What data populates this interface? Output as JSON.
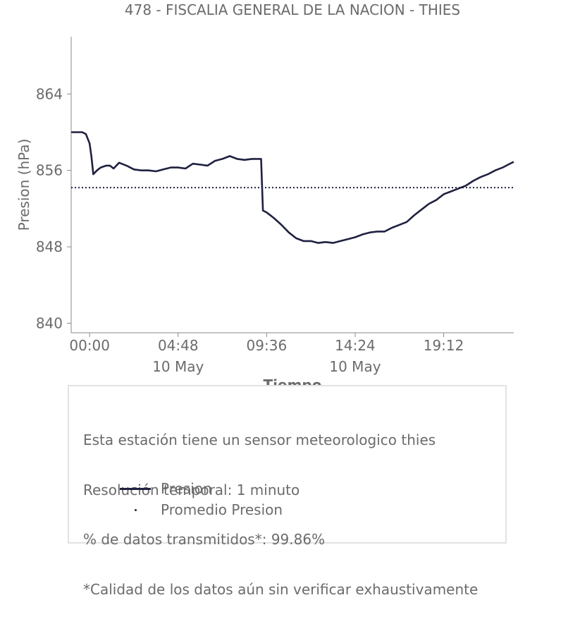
{
  "chart_data": {
    "type": "line",
    "title": "478 - FISCALIA GENERAL DE LA NACION - THIES",
    "xlabel": "Tiempo",
    "ylabel": "Presion (hPa)",
    "ylim": [
      839.0,
      870.0
    ],
    "xlim": [
      -1.0,
      23.0
    ],
    "x_unit": "hours since 10 May 00:00",
    "yticks": [
      840,
      848,
      856,
      864
    ],
    "xticks": [
      {
        "value": 0.0,
        "label": "00:00",
        "sublabel": ""
      },
      {
        "value": 4.8,
        "label": "04:48",
        "sublabel": "10 May"
      },
      {
        "value": 9.6,
        "label": "09:36",
        "sublabel": ""
      },
      {
        "value": 14.4,
        "label": "14:24",
        "sublabel": "10 May"
      },
      {
        "value": 19.2,
        "label": "19:12",
        "sublabel": ""
      }
    ],
    "series": [
      {
        "name": "Presion",
        "color": "#1f2140",
        "style": "solid",
        "x": [
          -1.0,
          -0.7,
          -0.4,
          -0.2,
          0.0,
          0.1,
          0.2,
          0.4,
          0.6,
          0.9,
          1.1,
          1.3,
          1.6,
          2.0,
          2.4,
          2.8,
          3.2,
          3.6,
          4.0,
          4.4,
          4.8,
          5.2,
          5.6,
          6.0,
          6.4,
          6.8,
          7.2,
          7.6,
          8.0,
          8.4,
          8.8,
          9.1,
          9.3,
          9.4,
          9.6,
          10.0,
          10.4,
          10.8,
          11.2,
          11.6,
          12.0,
          12.4,
          12.8,
          13.2,
          13.6,
          14.0,
          14.4,
          14.8,
          15.2,
          15.6,
          16.0,
          16.4,
          16.8,
          17.2,
          17.6,
          18.0,
          18.4,
          18.8,
          19.2,
          19.6,
          20.0,
          20.4,
          20.8,
          21.2,
          21.6,
          22.0,
          22.4,
          22.7,
          23.0
        ],
        "y": [
          860.0,
          860.0,
          860.0,
          859.8,
          858.8,
          857.4,
          855.6,
          856.0,
          856.3,
          856.5,
          856.5,
          856.2,
          856.8,
          856.5,
          856.1,
          856.0,
          856.0,
          855.9,
          856.1,
          856.3,
          856.3,
          856.2,
          856.7,
          856.6,
          856.5,
          857.0,
          857.2,
          857.5,
          857.2,
          857.1,
          857.2,
          857.2,
          857.2,
          851.8,
          851.6,
          851.0,
          850.3,
          849.5,
          848.9,
          848.6,
          848.6,
          848.4,
          848.5,
          848.4,
          848.6,
          848.8,
          849.0,
          849.3,
          849.5,
          849.6,
          849.6,
          850.0,
          850.3,
          850.6,
          851.3,
          851.9,
          852.5,
          852.9,
          853.5,
          853.8,
          854.1,
          854.4,
          854.9,
          855.3,
          855.6,
          856.0,
          856.3,
          856.6,
          856.9
        ]
      },
      {
        "name": "Promedio Presion",
        "color": "#1f2140",
        "style": "dotted",
        "x": [
          -1.0,
          23.0
        ],
        "y": [
          854.2,
          854.2
        ]
      }
    ],
    "grid": false,
    "legend_placement": "bottom"
  },
  "info": {
    "lines": [
      "Esta estación tiene un sensor meteorologico thies",
      "Resolución temporal: 1 minuto",
      "% de datos transmitidos*: 99.86%",
      "*Calidad de los datos aún sin verificar exhaustivamente"
    ]
  },
  "legend": {
    "items": [
      "Presion",
      "Promedio Presion"
    ]
  }
}
